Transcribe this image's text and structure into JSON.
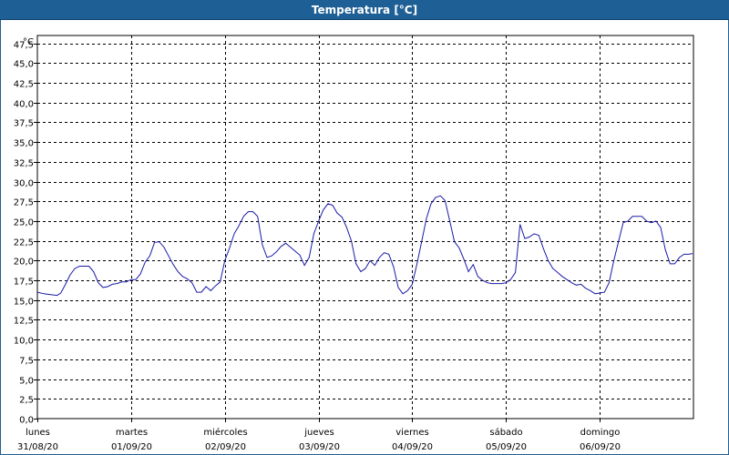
{
  "window": {
    "title": "Temperatura [°C]",
    "colors": {
      "titlebar": "#1e5f95",
      "line": "#1a1aa8",
      "grid": "#000000"
    }
  },
  "chart_data": {
    "type": "line",
    "title": "Temperatura [°C]",
    "ylabel": "°C",
    "xlabel": "",
    "ylim": [
      0,
      48.5
    ],
    "xlim": [
      0,
      7
    ],
    "grid": true,
    "legend": "none",
    "y_ticks": [
      "0,0",
      "2,5",
      "5,0",
      "7,5",
      "10,0",
      "12,5",
      "15,0",
      "17,5",
      "20,0",
      "22,5",
      "25,0",
      "27,5",
      "30,0",
      "32,5",
      "35,0",
      "37,5",
      "40,0",
      "42,5",
      "45,0",
      "47,5"
    ],
    "y_tick_values": [
      0,
      2.5,
      5,
      7.5,
      10,
      12.5,
      15,
      17.5,
      20,
      22.5,
      25,
      27.5,
      30,
      32.5,
      35,
      37.5,
      40,
      42.5,
      45,
      47.5
    ],
    "days": [
      {
        "name": "lunes",
        "date": "31/08/20"
      },
      {
        "name": "martes",
        "date": "01/09/20"
      },
      {
        "name": "miércoles",
        "date": "02/09/20"
      },
      {
        "name": "jueves",
        "date": "03/09/20"
      },
      {
        "name": "viernes",
        "date": "04/09/20"
      },
      {
        "name": "sábado",
        "date": "05/09/20"
      },
      {
        "name": "domingo",
        "date": "06/09/20"
      }
    ],
    "series": [
      {
        "x": [
          0,
          0.07,
          0.14,
          0.21,
          0.25,
          0.3,
          0.35,
          0.4,
          0.45,
          0.5,
          0.55,
          0.6,
          0.65,
          0.7,
          0.75,
          0.8,
          0.85,
          0.9,
          0.95,
          1.0,
          1.05,
          1.1,
          1.15,
          1.2,
          1.25,
          1.3,
          1.35,
          1.4,
          1.45,
          1.5,
          1.55,
          1.6,
          1.65,
          1.7,
          1.75,
          1.8,
          1.85,
          1.9,
          1.95,
          2.0,
          2.05,
          2.1,
          2.15,
          2.2,
          2.25,
          2.3,
          2.35,
          2.4,
          2.45,
          2.5,
          2.55,
          2.6,
          2.65,
          2.7,
          2.75,
          2.8,
          2.85,
          2.9,
          2.95,
          3.0,
          3.05,
          3.1,
          3.15,
          3.2,
          3.25,
          3.3,
          3.35,
          3.4,
          3.45,
          3.5,
          3.55,
          3.6,
          3.65,
          3.7,
          3.75,
          3.8,
          3.85,
          3.9,
          3.95,
          4.0,
          4.05,
          4.1,
          4.15,
          4.2,
          4.25,
          4.3,
          4.35,
          4.4,
          4.45,
          4.5,
          4.55,
          4.6,
          4.65,
          4.7,
          4.75,
          4.8,
          4.85,
          4.9,
          4.95,
          5.0,
          5.05,
          5.1,
          5.15,
          5.2,
          5.25,
          5.3,
          5.35,
          5.4,
          5.45,
          5.5,
          5.55,
          5.6,
          5.65,
          5.7,
          5.75,
          5.8,
          5.85,
          5.9,
          5.95,
          6.0,
          6.05,
          6.1,
          6.15,
          6.2,
          6.25,
          6.3,
          6.35,
          6.4,
          6.45,
          6.5,
          6.55,
          6.6,
          6.65,
          6.7,
          6.75,
          6.8,
          6.85,
          6.9,
          6.95,
          6.99
        ],
        "values": [
          16.0,
          15.8,
          15.7,
          15.6,
          15.9,
          17.0,
          18.2,
          19.0,
          19.3,
          19.3,
          19.3,
          18.6,
          17.2,
          16.6,
          16.7,
          17.0,
          17.1,
          17.3,
          17.3,
          17.6,
          17.6,
          18.3,
          19.8,
          20.6,
          22.3,
          22.4,
          21.7,
          20.6,
          19.5,
          18.6,
          18.0,
          17.7,
          17.2,
          16.0,
          16.0,
          16.7,
          16.2,
          16.8,
          17.3,
          20.0,
          21.6,
          23.4,
          24.4,
          25.6,
          26.2,
          26.2,
          25.6,
          22.0,
          20.4,
          20.6,
          21.1,
          21.8,
          22.2,
          21.7,
          21.2,
          20.7,
          19.4,
          20.4,
          23.4,
          25.0,
          26.4,
          27.2,
          27.0,
          26.0,
          25.5,
          24.2,
          22.5,
          19.6,
          18.6,
          19.0,
          20.0,
          19.4,
          20.4,
          21.0,
          20.8,
          19.2,
          16.6,
          15.8,
          16.2,
          17.0,
          19.6,
          22.4,
          25.3,
          27.2,
          28.0,
          28.2,
          27.6,
          25.0,
          22.4,
          21.6,
          20.2,
          18.6,
          19.5,
          18.0,
          17.5,
          17.2,
          17.1,
          17.1,
          17.1,
          17.2,
          17.6,
          18.5,
          24.6,
          22.8,
          23.0,
          23.4,
          23.2,
          21.5,
          20.0,
          19.0,
          18.5,
          18.0,
          17.6,
          17.2,
          16.9,
          17.0,
          16.5,
          16.2,
          15.8,
          15.9,
          16.0,
          17.2,
          20.0,
          22.4,
          24.8,
          25.0,
          25.6,
          25.6,
          25.6,
          25.0,
          24.8,
          25.0,
          24.2,
          21.4,
          19.6,
          19.6,
          20.4,
          20.8,
          20.8,
          20.9
        ]
      }
    ]
  }
}
